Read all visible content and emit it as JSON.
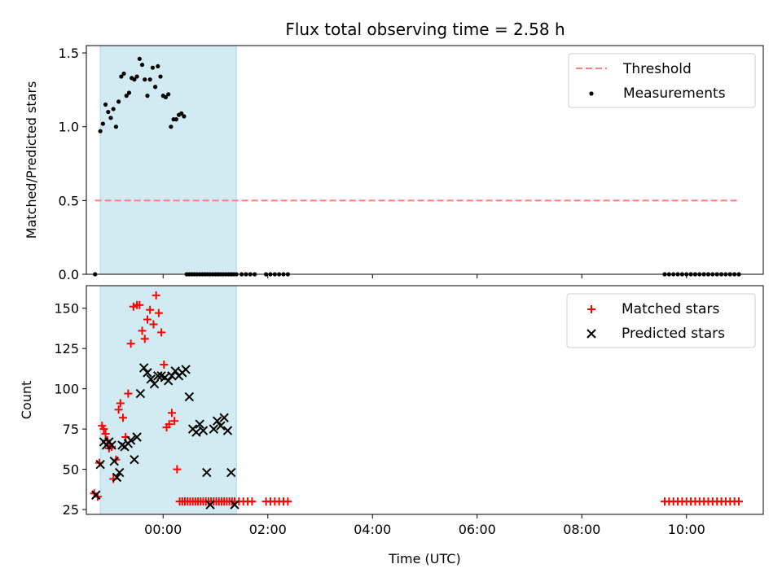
{
  "chart_data": [
    {
      "type": "scatter",
      "title": "Flux total observing time = 2.58 h",
      "xlabel": "",
      "ylabel": "Matched/Predicted stars",
      "ylim": [
        0.0,
        1.55
      ],
      "xlim": [
        "-01:28",
        "11:28"
      ],
      "grid": false,
      "legend_position": "top-right",
      "yticks": [
        "0.0",
        "0.5",
        "1.0",
        "1.5"
      ],
      "shaded_interval": [
        "-01:12",
        "01:24"
      ],
      "colors": {
        "threshold": "#ff7f7f",
        "measurements": "#000000",
        "shade": "#add8e6"
      },
      "threshold": {
        "name": "Threshold",
        "y": 0.5,
        "x": [
          "-01:18",
          "11:00"
        ]
      },
      "series": [
        {
          "name": "Measurements",
          "marker": "dot",
          "x": [
            "-01:18",
            "-01:12",
            "-01:09",
            "-01:06",
            "-01:03",
            "-01:00",
            "-00:57",
            "-00:54",
            "-00:51",
            "-00:48",
            "-00:45",
            "-00:42",
            "-00:39",
            "-00:36",
            "-00:33",
            "-00:30",
            "-00:27",
            "-00:24",
            "-00:21",
            "-00:18",
            "-00:15",
            "-00:12",
            "-00:09",
            "-00:06",
            "-00:03",
            "00:00",
            "00:03",
            "00:06",
            "00:09",
            "00:12",
            "00:15",
            "00:18",
            "00:21",
            "00:24",
            "00:27",
            "00:30",
            "00:33",
            "00:36",
            "00:39",
            "00:42",
            "00:45",
            "00:48",
            "00:51",
            "00:54",
            "00:57",
            "01:00",
            "01:03",
            "01:06",
            "01:09",
            "01:12",
            "01:15",
            "01:18",
            "01:21",
            "01:24",
            "01:30",
            "01:35",
            "01:40",
            "01:45",
            "01:58",
            "02:03",
            "02:08",
            "02:13",
            "02:18",
            "02:23",
            "09:35",
            "09:40",
            "09:45",
            "09:50",
            "09:55",
            "10:00",
            "10:05",
            "10:10",
            "10:15",
            "10:20",
            "10:25",
            "10:30",
            "10:35",
            "10:40",
            "10:45",
            "10:50",
            "10:55",
            "11:00"
          ],
          "y": [
            0.0,
            0.97,
            1.02,
            1.15,
            1.1,
            1.06,
            1.12,
            1.0,
            1.17,
            1.34,
            1.36,
            1.21,
            1.23,
            1.33,
            1.32,
            1.34,
            1.46,
            1.42,
            1.32,
            1.21,
            1.32,
            1.4,
            1.27,
            1.41,
            1.34,
            1.21,
            1.2,
            1.22,
            1.0,
            1.05,
            1.05,
            1.08,
            1.09,
            1.07,
            0.0,
            0.0,
            0.0,
            0.0,
            0.0,
            0.0,
            0.0,
            0.0,
            0.0,
            0.0,
            0.0,
            0.0,
            0.0,
            0.0,
            0.0,
            0.0,
            0.0,
            0.0,
            0.0,
            0.0,
            0.0,
            0.0,
            0.0,
            0.0,
            0.0,
            0.0,
            0.0,
            0.0,
            0.0,
            0.0,
            0.0,
            0.0,
            0.0,
            0.0,
            0.0,
            0.0,
            0.0,
            0.0,
            0.0,
            0.0,
            0.0,
            0.0,
            0.0,
            0.0,
            0.0,
            0.0,
            0.0,
            0.0
          ]
        }
      ]
    },
    {
      "type": "scatter",
      "title": "",
      "xlabel": "Time (UTC)",
      "ylabel": "Count",
      "ylim": [
        22,
        164
      ],
      "xlim": [
        "-01:28",
        "11:28"
      ],
      "grid": false,
      "legend_position": "top-right",
      "yticks": [
        "25",
        "50",
        "75",
        "100",
        "125",
        "150"
      ],
      "xticks": [
        "00:00",
        "02:00",
        "04:00",
        "06:00",
        "08:00",
        "10:00"
      ],
      "shaded_interval": [
        "-01:12",
        "01:24"
      ],
      "colors": {
        "matched": "#ff0000",
        "predicted": "#000000",
        "shade": "#add8e6"
      },
      "series": [
        {
          "name": "Matched stars",
          "marker": "plus",
          "x": [
            "-01:19",
            "-01:15",
            "-01:13",
            "-01:10",
            "-01:08",
            "-01:06",
            "-01:04",
            "-01:02",
            "-00:59",
            "-00:57",
            "-00:54",
            "-00:51",
            "-00:49",
            "-00:46",
            "-00:43",
            "-00:40",
            "-00:37",
            "-00:34",
            "-00:30",
            "-00:27",
            "-00:24",
            "-00:21",
            "-00:18",
            "-00:15",
            "-00:11",
            "-00:08",
            "-00:05",
            "-00:02",
            "00:01",
            "00:04",
            "00:07",
            "00:10",
            "00:13",
            "00:16",
            "00:19",
            "00:22",
            "00:25",
            "00:28",
            "00:31",
            "00:34",
            "00:37",
            "00:40",
            "00:43",
            "00:46",
            "00:49",
            "00:52",
            "00:55",
            "00:58",
            "01:01",
            "01:04",
            "01:07",
            "01:10",
            "01:13",
            "01:16",
            "01:19",
            "01:22",
            "01:27",
            "01:32",
            "01:37",
            "01:42",
            "01:58",
            "02:03",
            "02:08",
            "02:13",
            "02:18",
            "02:23",
            "09:35",
            "09:40",
            "09:45",
            "09:50",
            "09:55",
            "10:00",
            "10:05",
            "10:10",
            "10:15",
            "10:20",
            "10:25",
            "10:30",
            "10:35",
            "10:40",
            "10:45",
            "10:50",
            "10:55",
            "11:00"
          ],
          "y": [
            35,
            33,
            54,
            77,
            75,
            72,
            68,
            63,
            64,
            44,
            56,
            87,
            91,
            82,
            70,
            97,
            128,
            151,
            152,
            152,
            136,
            131,
            143,
            149,
            140,
            158,
            147,
            135,
            115,
            76,
            78,
            85,
            80,
            50,
            30,
            30,
            30,
            30,
            30,
            30,
            30,
            30,
            30,
            30,
            30,
            30,
            30,
            30,
            30,
            30,
            30,
            30,
            30,
            30,
            30,
            30,
            30,
            30,
            30,
            30,
            30,
            30,
            30,
            30,
            30,
            30,
            30,
            30,
            30,
            30,
            30,
            30,
            30,
            30,
            30,
            30,
            30,
            30,
            30,
            30,
            30,
            30,
            30,
            30
          ],
          "note_x_trimmed": true
        },
        {
          "name": "Predicted stars",
          "marker": "x",
          "x": [
            "-01:17",
            "-01:12",
            "-01:08",
            "-01:05",
            "-01:02",
            "-00:59",
            "-00:56",
            "-00:53",
            "-00:50",
            "-00:47",
            "-00:44",
            "-00:40",
            "-00:37",
            "-00:33",
            "-00:30",
            "-00:26",
            "-00:22",
            "-00:18",
            "-00:14",
            "-00:10",
            "-00:06",
            "-00:02",
            "00:02",
            "00:06",
            "00:10",
            "00:14",
            "00:18",
            "00:22",
            "00:26",
            "00:30",
            "00:34",
            "00:38",
            "00:42",
            "00:46",
            "00:50",
            "00:54",
            "00:58",
            "01:02",
            "01:06",
            "01:10",
            "01:14",
            "01:18",
            "01:22"
          ],
          "y": [
            34,
            53,
            67,
            65,
            67,
            65,
            55,
            45,
            48,
            65,
            64,
            66,
            68,
            56,
            70,
            97,
            113,
            110,
            106,
            103,
            108,
            108,
            107,
            105,
            108,
            111,
            108,
            110,
            112,
            95,
            75,
            73,
            78,
            74,
            48,
            28,
            75,
            80,
            77,
            82,
            74,
            48,
            28
          ]
        }
      ]
    }
  ]
}
